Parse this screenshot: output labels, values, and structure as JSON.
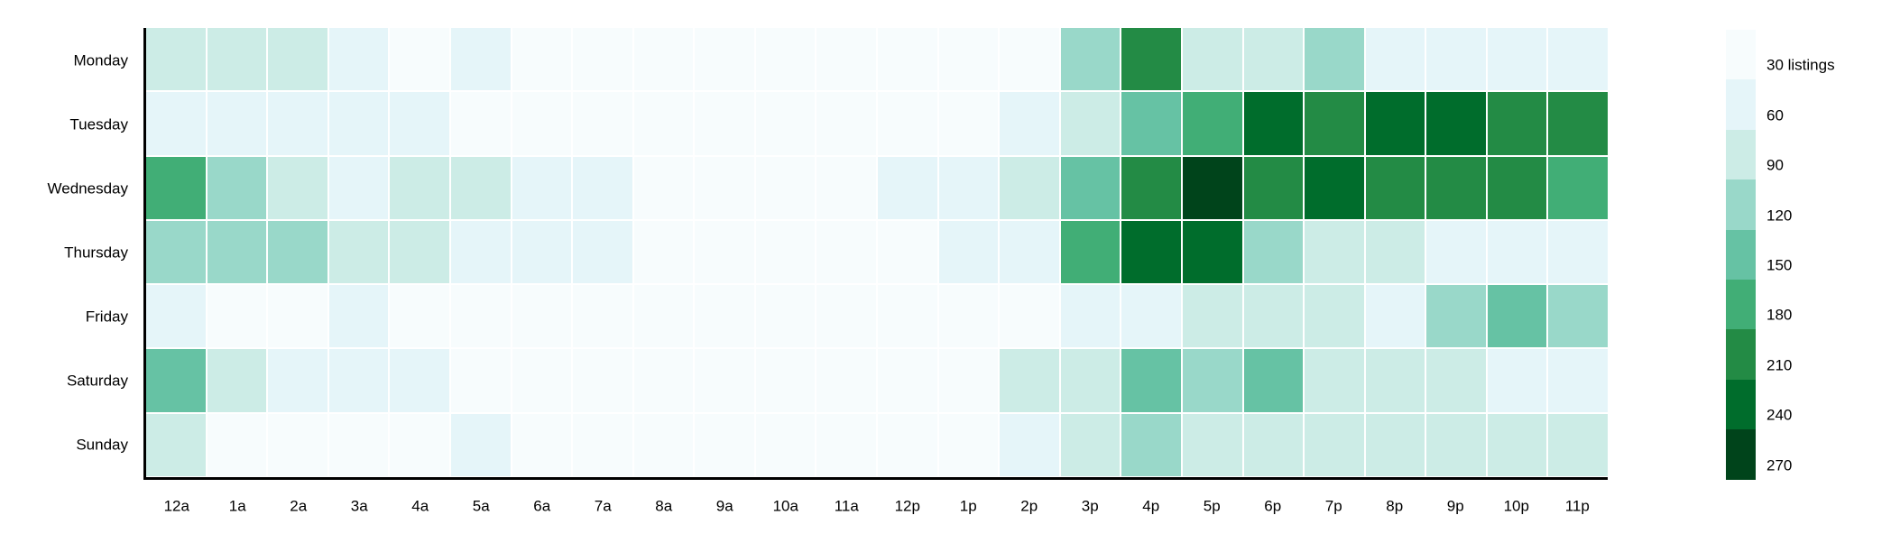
{
  "chart_data": {
    "type": "heatmap",
    "title": "",
    "unit": "listings",
    "xlabel": "",
    "ylabel": "",
    "x_categories": [
      "12a",
      "1a",
      "2a",
      "3a",
      "4a",
      "5a",
      "6a",
      "7a",
      "8a",
      "9a",
      "10a",
      "11a",
      "12p",
      "1p",
      "2p",
      "3p",
      "4p",
      "5p",
      "6p",
      "7p",
      "8p",
      "9p",
      "10p",
      "11p"
    ],
    "y_categories": [
      "Monday",
      "Tuesday",
      "Wednesday",
      "Thursday",
      "Friday",
      "Saturday",
      "Sunday"
    ],
    "series": [
      {
        "name": "Monday",
        "values": [
          90,
          90,
          90,
          60,
          30,
          60,
          30,
          30,
          30,
          30,
          30,
          30,
          30,
          30,
          30,
          120,
          210,
          90,
          90,
          120,
          60,
          60,
          60,
          60
        ]
      },
      {
        "name": "Tuesday",
        "values": [
          60,
          60,
          60,
          60,
          60,
          30,
          30,
          30,
          30,
          30,
          30,
          30,
          30,
          30,
          60,
          90,
          150,
          180,
          240,
          210,
          240,
          240,
          210,
          210
        ]
      },
      {
        "name": "Wednesday",
        "values": [
          180,
          120,
          90,
          60,
          90,
          90,
          60,
          60,
          30,
          30,
          30,
          30,
          60,
          60,
          90,
          150,
          210,
          270,
          210,
          240,
          210,
          210,
          210,
          180
        ]
      },
      {
        "name": "Thursday",
        "values": [
          120,
          120,
          120,
          90,
          90,
          60,
          60,
          60,
          30,
          30,
          30,
          30,
          30,
          60,
          60,
          180,
          240,
          240,
          120,
          90,
          90,
          60,
          60,
          60
        ]
      },
      {
        "name": "Friday",
        "values": [
          60,
          30,
          30,
          60,
          30,
          30,
          30,
          30,
          30,
          30,
          30,
          30,
          30,
          30,
          30,
          60,
          60,
          90,
          90,
          90,
          60,
          120,
          150,
          120
        ]
      },
      {
        "name": "Saturday",
        "values": [
          150,
          90,
          60,
          60,
          60,
          30,
          30,
          30,
          30,
          30,
          30,
          30,
          30,
          30,
          90,
          90,
          150,
          120,
          150,
          90,
          90,
          90,
          60,
          60
        ]
      },
      {
        "name": "Sunday",
        "values": [
          90,
          30,
          30,
          30,
          30,
          60,
          30,
          30,
          30,
          30,
          30,
          30,
          30,
          30,
          60,
          90,
          120,
          90,
          90,
          90,
          90,
          90,
          90,
          90
        ]
      }
    ],
    "color_scale": {
      "type": "threshold",
      "levels": [
        30,
        60,
        90,
        120,
        150,
        180,
        210,
        240,
        270
      ],
      "colors": [
        "#f7fcfd",
        "#e5f5f9",
        "#ccece6",
        "#99d8c9",
        "#66c2a4",
        "#41ae76",
        "#238b45",
        "#006d2c",
        "#00441b"
      ]
    },
    "legend": {
      "position": "right",
      "labels": [
        "30 listings",
        "60",
        "90",
        "120",
        "150",
        "180",
        "210",
        "240",
        "270"
      ]
    },
    "grid": "off",
    "axes": {
      "left_axis_line": true,
      "bottom_axis_line": true
    }
  }
}
